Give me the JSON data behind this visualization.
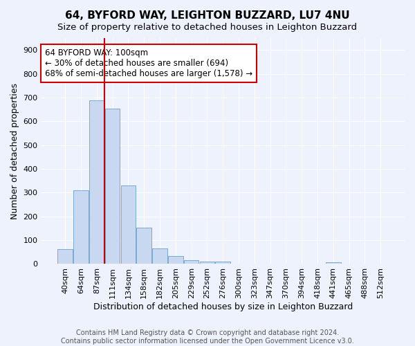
{
  "title": "64, BYFORD WAY, LEIGHTON BUZZARD, LU7 4NU",
  "subtitle": "Size of property relative to detached houses in Leighton Buzzard",
  "xlabel": "Distribution of detached houses by size in Leighton Buzzard",
  "ylabel": "Number of detached properties",
  "bar_color": "#c8d8f0",
  "bar_edge_color": "#7aaad0",
  "categories": [
    "40sqm",
    "64sqm",
    "87sqm",
    "111sqm",
    "134sqm",
    "158sqm",
    "182sqm",
    "205sqm",
    "229sqm",
    "252sqm",
    "276sqm",
    "300sqm",
    "323sqm",
    "347sqm",
    "370sqm",
    "394sqm",
    "418sqm",
    "441sqm",
    "465sqm",
    "488sqm",
    "512sqm"
  ],
  "values": [
    62,
    310,
    688,
    653,
    330,
    153,
    65,
    33,
    17,
    10,
    10,
    0,
    0,
    0,
    0,
    0,
    0,
    8,
    0,
    0,
    0
  ],
  "vline_x_index": 2,
  "vline_color": "#cc0000",
  "annotation_text": "64 BYFORD WAY: 100sqm\n← 30% of detached houses are smaller (694)\n68% of semi-detached houses are larger (1,578) →",
  "annotation_box_color": "#ffffff",
  "annotation_box_edge": "#cc0000",
  "ylim": [
    0,
    950
  ],
  "yticks": [
    0,
    100,
    200,
    300,
    400,
    500,
    600,
    700,
    800,
    900
  ],
  "footnote": "Contains HM Land Registry data © Crown copyright and database right 2024.\nContains public sector information licensed under the Open Government Licence v3.0.",
  "background_color": "#eef2fc",
  "grid_color": "#ffffff",
  "title_fontsize": 11,
  "subtitle_fontsize": 9.5,
  "axis_label_fontsize": 9,
  "tick_fontsize": 8,
  "annotation_fontsize": 8.5,
  "footnote_fontsize": 7
}
